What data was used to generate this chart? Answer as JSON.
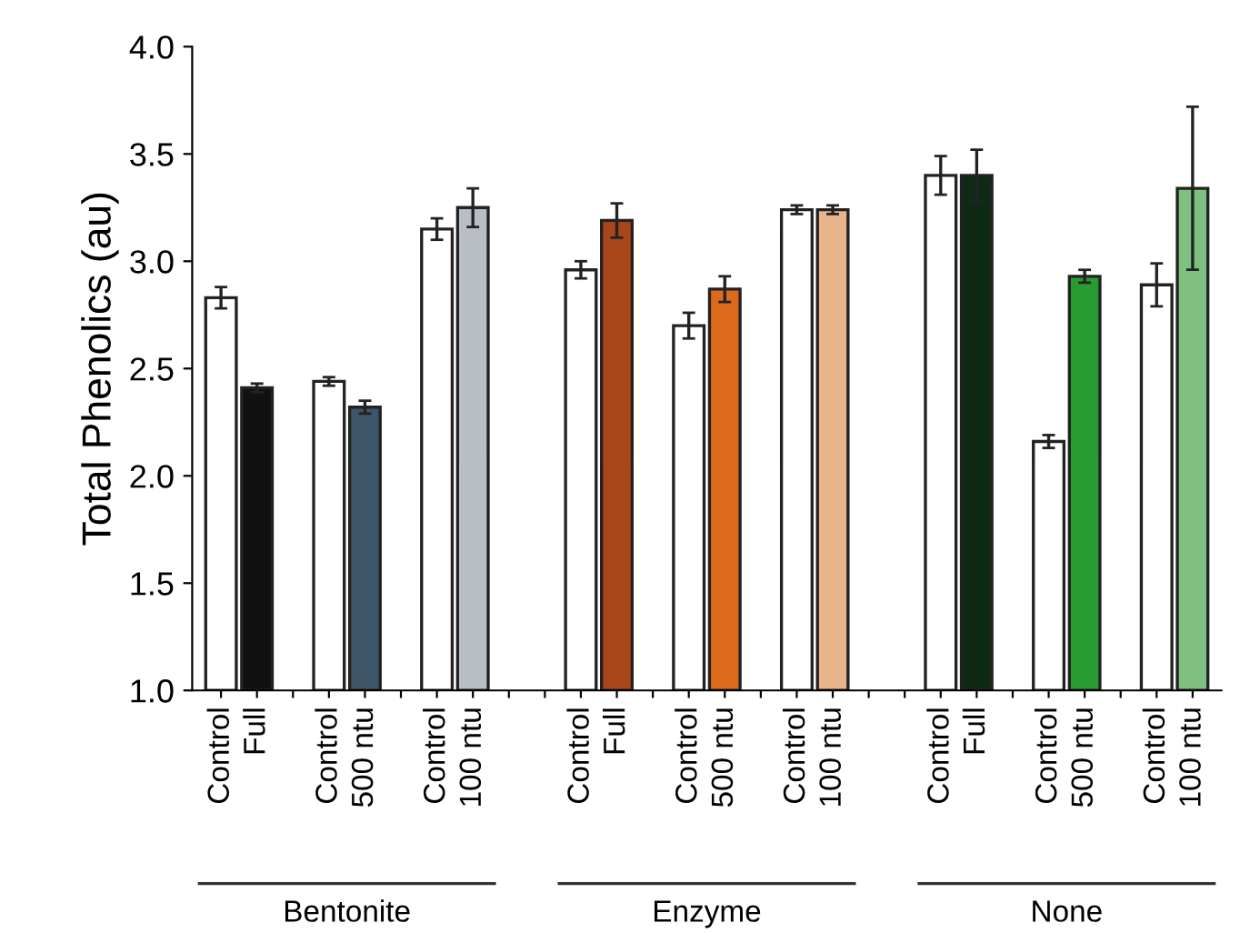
{
  "chart_data": {
    "type": "bar",
    "ylabel": "Total Phenolics (au)",
    "categories": [
      "Control",
      "Full",
      null,
      "Control",
      "500 ntu",
      null,
      "Control",
      "100 ntu",
      null,
      null,
      "Control",
      "Full",
      null,
      "Control",
      "500 ntu",
      null,
      "Control",
      "100 ntu",
      null,
      null,
      "Control",
      "Full",
      null,
      "Control",
      "500 ntu",
      null,
      "Control",
      "100 ntu"
    ],
    "values": [
      2.83,
      2.41,
      null,
      2.44,
      2.32,
      null,
      3.15,
      3.25,
      null,
      null,
      2.96,
      3.19,
      null,
      2.7,
      2.87,
      null,
      3.24,
      3.24,
      null,
      null,
      3.4,
      3.4,
      null,
      2.16,
      2.93,
      null,
      2.89,
      3.34
    ],
    "errors": [
      0.05,
      0.02,
      null,
      0.02,
      0.03,
      null,
      0.05,
      0.09,
      null,
      null,
      0.04,
      0.08,
      null,
      0.06,
      0.06,
      null,
      0.02,
      0.02,
      null,
      null,
      0.09,
      0.12,
      null,
      0.03,
      0.03,
      null,
      0.1,
      0.38
    ],
    "colors": [
      "#ffffff",
      "#111111",
      null,
      "#ffffff",
      "#3d5566",
      null,
      "#ffffff",
      "#b8bec4",
      null,
      null,
      "#ffffff",
      "#a8461a",
      null,
      "#ffffff",
      "#dd6a1a",
      null,
      "#ffffff",
      "#e8b48a",
      null,
      null,
      "#ffffff",
      "#0f2a14",
      null,
      "#ffffff",
      "#2a9a32",
      null,
      "#ffffff",
      "#7fbf7f"
    ],
    "ylim": [
      1.0,
      4.0
    ],
    "yticks": [
      {
        "value": 1.0,
        "label": "1.0"
      },
      {
        "value": 1.5,
        "label": "1.5"
      },
      {
        "value": 2.0,
        "label": "2.0"
      },
      {
        "value": 2.5,
        "label": "2.5"
      },
      {
        "value": 3.0,
        "label": "3.0"
      },
      {
        "value": 3.5,
        "label": "3.5"
      },
      {
        "value": 4.0,
        "label": "4.0"
      }
    ],
    "grid": false,
    "legend": false,
    "annotations": [
      "Bentonite",
      "Enzyme",
      "None"
    ]
  }
}
